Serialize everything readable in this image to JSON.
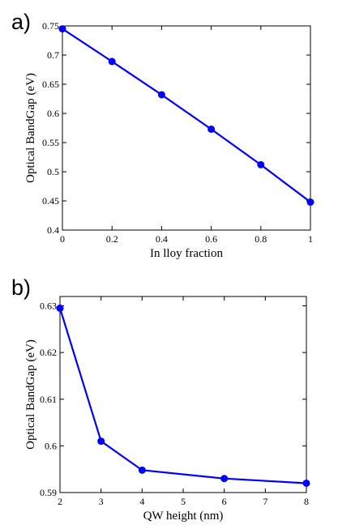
{
  "panels": [
    {
      "label": "a)"
    },
    {
      "label": "b)"
    }
  ],
  "chart_data": [
    {
      "type": "line",
      "title": "",
      "xlabel": "In lloy fraction",
      "ylabel": "Optical BandGap (eV)",
      "xlim": [
        0,
        1
      ],
      "ylim": [
        0.4,
        0.75
      ],
      "xticks": [
        0,
        0.2,
        0.4,
        0.6,
        0.8,
        1
      ],
      "xtick_labels": [
        "0",
        "0.2",
        "0.4",
        "0.6",
        "0.8",
        "1"
      ],
      "yticks": [
        0.4,
        0.45,
        0.5,
        0.55,
        0.6,
        0.65,
        0.7,
        0.75
      ],
      "ytick_labels": [
        "0.4",
        "0.45",
        "0.5",
        "0.55",
        "0.6",
        "0.65",
        "0.7",
        "0.75"
      ],
      "grid": false,
      "color": "#0000ff",
      "series": [
        {
          "x": [
            0,
            0.2,
            0.4,
            0.6,
            0.8,
            1
          ],
          "y": [
            0.745,
            0.689,
            0.632,
            0.573,
            0.512,
            0.448
          ]
        }
      ]
    },
    {
      "type": "line",
      "title": "",
      "xlabel": "QW height (nm)",
      "ylabel": "Optical BandGap (eV)",
      "xlim": [
        2,
        8
      ],
      "ylim": [
        0.59,
        0.632
      ],
      "xticks": [
        2,
        3,
        4,
        5,
        6,
        7,
        8
      ],
      "xtick_labels": [
        "2",
        "3",
        "4",
        "5",
        "6",
        "7",
        "8"
      ],
      "yticks": [
        0.59,
        0.6,
        0.61,
        0.62,
        0.63
      ],
      "ytick_labels": [
        "0.59",
        "0.6",
        "0.61",
        "0.62",
        "0.63"
      ],
      "grid": false,
      "color": "#0000ff",
      "series": [
        {
          "x": [
            2,
            3,
            4,
            6,
            8
          ],
          "y": [
            0.6295,
            0.601,
            0.5948,
            0.593,
            0.592
          ]
        }
      ]
    }
  ]
}
